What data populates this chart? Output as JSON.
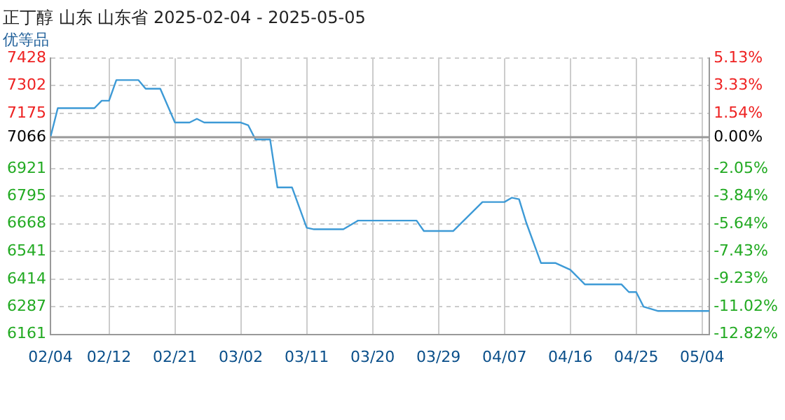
{
  "chart_data": {
    "type": "line",
    "title": "正丁醇 山东 山东省 2025-02-04 - 2025-05-05",
    "subtitle": "优等品",
    "x": [
      "--02-04",
      "--02-05",
      "--02-10",
      "--02-11",
      "--02-12",
      "--02-13",
      "--02-16",
      "--02-17",
      "--02-19",
      "--02-21",
      "--02-23",
      "--02-24",
      "--02-25",
      "--03-02",
      "--03-03",
      "--03-04",
      "--03-06",
      "--03-07",
      "--03-09",
      "--03-11",
      "--03-12",
      "--03-16",
      "--03-18",
      "--03-26",
      "--03-27",
      "--03-31",
      "--04-04",
      "--04-07",
      "--04-08",
      "--04-09",
      "--04-10",
      "--04-12",
      "--04-14",
      "--04-16",
      "--04-18",
      "--04-23",
      "--04-24",
      "--04-25",
      "--04-26",
      "--04-28",
      "--05-05"
    ],
    "series": [
      {
        "color": "#3d9ad6",
        "values": [
          7066,
          7199,
          7199,
          7233,
          7233,
          7328,
          7328,
          7288,
          7288,
          7133,
          7133,
          7150,
          7133,
          7133,
          7121,
          7055,
          7055,
          6835,
          6835,
          6650,
          6643,
          6643,
          6683,
          6683,
          6635,
          6635,
          6768,
          6768,
          6788,
          6781,
          6672,
          6488,
          6488,
          6457,
          6390,
          6390,
          6355,
          6355,
          6288,
          6268,
          6268
        ]
      }
    ],
    "xlim": [
      "--02-04",
      "--05-05"
    ],
    "xticks": [
      {
        "value": "--02-04",
        "label": "02/04"
      },
      {
        "value": "--02-12",
        "label": "02/12"
      },
      {
        "value": "--02-21",
        "label": "02/21"
      },
      {
        "value": "--03-02",
        "label": "03/02"
      },
      {
        "value": "--03-11",
        "label": "03/11"
      },
      {
        "value": "--03-20",
        "label": "03/20"
      },
      {
        "value": "--03-29",
        "label": "03/29"
      },
      {
        "value": "--04-07",
        "label": "04/07"
      },
      {
        "value": "--04-16",
        "label": "04/16"
      },
      {
        "value": "--04-25",
        "label": "04/25"
      },
      {
        "value": "--05-04",
        "label": "05/04"
      }
    ],
    "ylim": [
      6161,
      7428
    ],
    "yticks": [
      7428,
      7302,
      7175,
      7066,
      {
        "value": 7048,
        "label": null
      },
      6921,
      6795,
      6668,
      6541,
      6414,
      6287,
      6161
    ],
    "y2lim": [
      -12.82,
      5.13
    ],
    "y2ticks": [
      {
        "value": 5.13,
        "label": "5.13%"
      },
      {
        "value": 3.33,
        "label": "3.33%"
      },
      {
        "value": 1.54,
        "label": "1.54%"
      },
      {
        "value": 0,
        "label": "0.00%"
      },
      {
        "value": -2.05,
        "label": "-2.05%"
      },
      {
        "value": -3.84,
        "label": "-3.84%"
      },
      {
        "value": -5.64,
        "label": "-5.64%"
      },
      {
        "value": -7.43,
        "label": "-7.43%"
      },
      {
        "value": -9.23,
        "label": "-9.23%"
      },
      {
        "value": -11.02,
        "label": "-11.02%"
      },
      {
        "value": -12.82,
        "label": "-12.82%"
      }
    ],
    "ref_lines": [
      {
        "axis": "y",
        "value": 7066,
        "color": "#999999"
      }
    ],
    "grid": true,
    "legend": false,
    "marker": "none",
    "line_style": "solid"
  }
}
